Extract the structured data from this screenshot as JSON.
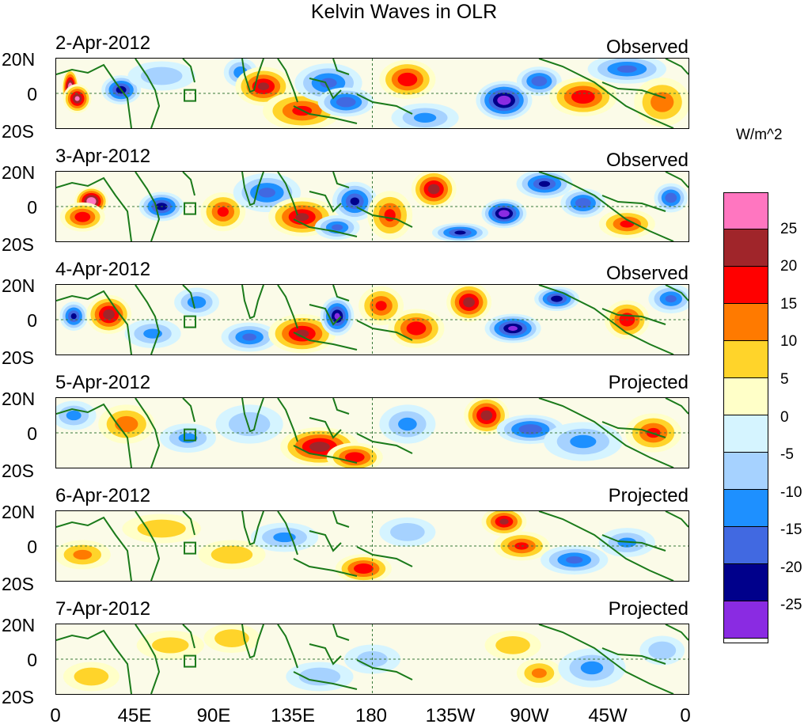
{
  "title": "Kelvin Waves in OLR",
  "panels": [
    {
      "date": "2-Apr-2012",
      "status": "Observed",
      "anomalies": [
        {
          "lon": 8,
          "lat": 3,
          "val": 30,
          "rx": 3,
          "ry": 8
        },
        {
          "lon": 12,
          "lat": -3,
          "val": 25,
          "rx": 5,
          "ry": 6
        },
        {
          "lon": 37,
          "lat": 2,
          "val": -22,
          "rx": 7,
          "ry": 6
        },
        {
          "lon": 60,
          "lat": 10,
          "val": -8,
          "rx": 12,
          "ry": 6
        },
        {
          "lon": 105,
          "lat": 12,
          "val": -12,
          "rx": 6,
          "ry": 6
        },
        {
          "lon": 118,
          "lat": 4,
          "val": 20,
          "rx": 10,
          "ry": 8
        },
        {
          "lon": 140,
          "lat": -10,
          "val": 15,
          "rx": 14,
          "ry": 8
        },
        {
          "lon": 155,
          "lat": 6,
          "val": -15,
          "rx": 12,
          "ry": 8
        },
        {
          "lon": 165,
          "lat": -5,
          "val": -18,
          "rx": 10,
          "ry": 6
        },
        {
          "lon": 200,
          "lat": 8,
          "val": 18,
          "rx": 10,
          "ry": 8
        },
        {
          "lon": 210,
          "lat": -14,
          "val": -10,
          "rx": 12,
          "ry": 6
        },
        {
          "lon": 255,
          "lat": -4,
          "val": -28,
          "rx": 10,
          "ry": 8
        },
        {
          "lon": 275,
          "lat": 7,
          "val": -18,
          "rx": 8,
          "ry": 6
        },
        {
          "lon": 300,
          "lat": -2,
          "val": 18,
          "rx": 12,
          "ry": 8
        },
        {
          "lon": 325,
          "lat": 14,
          "val": -15,
          "rx": 14,
          "ry": 6
        },
        {
          "lon": 345,
          "lat": -5,
          "val": 12,
          "rx": 10,
          "ry": 10
        }
      ]
    },
    {
      "date": "3-Apr-2012",
      "status": "Observed",
      "anomalies": [
        {
          "lon": 20,
          "lat": 3,
          "val": 30,
          "rx": 6,
          "ry": 6
        },
        {
          "lon": 15,
          "lat": -6,
          "val": 18,
          "rx": 8,
          "ry": 6
        },
        {
          "lon": 60,
          "lat": 0,
          "val": -22,
          "rx": 8,
          "ry": 6
        },
        {
          "lon": 95,
          "lat": -3,
          "val": 15,
          "rx": 8,
          "ry": 8
        },
        {
          "lon": 120,
          "lat": 8,
          "val": -15,
          "rx": 12,
          "ry": 8
        },
        {
          "lon": 140,
          "lat": -6,
          "val": 20,
          "rx": 12,
          "ry": 8
        },
        {
          "lon": 160,
          "lat": -12,
          "val": -15,
          "rx": 8,
          "ry": 5
        },
        {
          "lon": 170,
          "lat": 3,
          "val": -20,
          "rx": 8,
          "ry": 8
        },
        {
          "lon": 190,
          "lat": -5,
          "val": 15,
          "rx": 8,
          "ry": 10
        },
        {
          "lon": 215,
          "lat": 10,
          "val": 22,
          "rx": 8,
          "ry": 8
        },
        {
          "lon": 230,
          "lat": -15,
          "val": -20,
          "rx": 10,
          "ry": 4
        },
        {
          "lon": 255,
          "lat": -4,
          "val": -28,
          "rx": 8,
          "ry": 6
        },
        {
          "lon": 278,
          "lat": 13,
          "val": -20,
          "rx": 10,
          "ry": 6
        },
        {
          "lon": 300,
          "lat": 2,
          "val": -18,
          "rx": 8,
          "ry": 6
        },
        {
          "lon": 325,
          "lat": -10,
          "val": 15,
          "rx": 10,
          "ry": 6
        },
        {
          "lon": 350,
          "lat": 5,
          "val": -18,
          "rx": 6,
          "ry": 6
        }
      ]
    },
    {
      "date": "4-Apr-2012",
      "status": "Observed",
      "anomalies": [
        {
          "lon": 10,
          "lat": 2,
          "val": -20,
          "rx": 5,
          "ry": 6
        },
        {
          "lon": 30,
          "lat": 3,
          "val": 22,
          "rx": 8,
          "ry": 8
        },
        {
          "lon": 55,
          "lat": -8,
          "val": -10,
          "rx": 10,
          "ry": 6
        },
        {
          "lon": 80,
          "lat": 10,
          "val": -12,
          "rx": 8,
          "ry": 6
        },
        {
          "lon": 110,
          "lat": -10,
          "val": -15,
          "rx": 10,
          "ry": 6
        },
        {
          "lon": 140,
          "lat": -8,
          "val": 20,
          "rx": 12,
          "ry": 8
        },
        {
          "lon": 160,
          "lat": 2,
          "val": -25,
          "rx": 6,
          "ry": 8
        },
        {
          "lon": 185,
          "lat": 8,
          "val": 15,
          "rx": 8,
          "ry": 8
        },
        {
          "lon": 205,
          "lat": -5,
          "val": 18,
          "rx": 10,
          "ry": 8
        },
        {
          "lon": 235,
          "lat": 10,
          "val": 22,
          "rx": 8,
          "ry": 8
        },
        {
          "lon": 260,
          "lat": -5,
          "val": -25,
          "rx": 10,
          "ry": 6
        },
        {
          "lon": 285,
          "lat": 12,
          "val": -22,
          "rx": 8,
          "ry": 5
        },
        {
          "lon": 325,
          "lat": 0,
          "val": 18,
          "rx": 8,
          "ry": 8
        },
        {
          "lon": 350,
          "lat": 12,
          "val": -15,
          "rx": 8,
          "ry": 6
        }
      ]
    },
    {
      "date": "5-Apr-2012",
      "status": "Projected",
      "anomalies": [
        {
          "lon": 10,
          "lat": 10,
          "val": -10,
          "rx": 8,
          "ry": 6
        },
        {
          "lon": 40,
          "lat": 5,
          "val": 12,
          "rx": 10,
          "ry": 8
        },
        {
          "lon": 75,
          "lat": -3,
          "val": -10,
          "rx": 10,
          "ry": 6
        },
        {
          "lon": 110,
          "lat": 5,
          "val": -8,
          "rx": 12,
          "ry": 8
        },
        {
          "lon": 150,
          "lat": -8,
          "val": 22,
          "rx": 14,
          "ry": 8
        },
        {
          "lon": 170,
          "lat": -14,
          "val": 18,
          "rx": 10,
          "ry": 6
        },
        {
          "lon": 200,
          "lat": 5,
          "val": -10,
          "rx": 10,
          "ry": 8
        },
        {
          "lon": 245,
          "lat": 10,
          "val": 22,
          "rx": 8,
          "ry": 8
        },
        {
          "lon": 270,
          "lat": 2,
          "val": -18,
          "rx": 12,
          "ry": 6
        },
        {
          "lon": 300,
          "lat": -5,
          "val": -10,
          "rx": 14,
          "ry": 8
        },
        {
          "lon": 340,
          "lat": 0,
          "val": 15,
          "rx": 10,
          "ry": 8
        }
      ]
    },
    {
      "date": "6-Apr-2012",
      "status": "Projected",
      "anomalies": [
        {
          "lon": 15,
          "lat": -5,
          "val": 10,
          "rx": 10,
          "ry": 6
        },
        {
          "lon": 60,
          "lat": 10,
          "val": 8,
          "rx": 14,
          "ry": 6
        },
        {
          "lon": 100,
          "lat": -5,
          "val": 8,
          "rx": 12,
          "ry": 6
        },
        {
          "lon": 130,
          "lat": 5,
          "val": -10,
          "rx": 12,
          "ry": 6
        },
        {
          "lon": 175,
          "lat": -13,
          "val": 18,
          "rx": 10,
          "ry": 6
        },
        {
          "lon": 200,
          "lat": 8,
          "val": -8,
          "rx": 10,
          "ry": 6
        },
        {
          "lon": 255,
          "lat": 14,
          "val": 20,
          "rx": 8,
          "ry": 6
        },
        {
          "lon": 265,
          "lat": 0,
          "val": 15,
          "rx": 10,
          "ry": 6
        },
        {
          "lon": 295,
          "lat": -8,
          "val": -15,
          "rx": 12,
          "ry": 6
        },
        {
          "lon": 325,
          "lat": 2,
          "val": -10,
          "rx": 10,
          "ry": 6
        }
      ]
    },
    {
      "date": "7-Apr-2012",
      "status": "Projected",
      "anomalies": [
        {
          "lon": 20,
          "lat": -10,
          "val": 8,
          "rx": 10,
          "ry": 6
        },
        {
          "lon": 65,
          "lat": 8,
          "val": 6,
          "rx": 12,
          "ry": 6
        },
        {
          "lon": 100,
          "lat": 12,
          "val": 8,
          "rx": 10,
          "ry": 6
        },
        {
          "lon": 150,
          "lat": -10,
          "val": -8,
          "rx": 12,
          "ry": 6
        },
        {
          "lon": 180,
          "lat": 0,
          "val": -6,
          "rx": 10,
          "ry": 6
        },
        {
          "lon": 260,
          "lat": 8,
          "val": 8,
          "rx": 10,
          "ry": 6
        },
        {
          "lon": 275,
          "lat": -8,
          "val": 10,
          "rx": 8,
          "ry": 6
        },
        {
          "lon": 305,
          "lat": -5,
          "val": -10,
          "rx": 12,
          "ry": 8
        },
        {
          "lon": 345,
          "lat": 5,
          "val": -8,
          "rx": 8,
          "ry": 6
        }
      ]
    }
  ],
  "lat_ticks": [
    "20N",
    "0",
    "20S"
  ],
  "lon_ticks": [
    "0",
    "45E",
    "90E",
    "135E",
    "180",
    "135W",
    "90W",
    "45W",
    "0"
  ],
  "colorbar": {
    "unit": "W/m^2",
    "colors": [
      "#ff76c0",
      "#a0252a",
      "#ff0000",
      "#ff7a00",
      "#ffd42a",
      "#ffffc8",
      "#d5f4ff",
      "#a6d2ff",
      "#1e90ff",
      "#4169e1",
      "#00008b",
      "#8a2be2"
    ],
    "labels": [
      "25",
      "20",
      "15",
      "10",
      "5",
      "0",
      "-5",
      "-10",
      "-15",
      "-20",
      "-25"
    ]
  }
}
